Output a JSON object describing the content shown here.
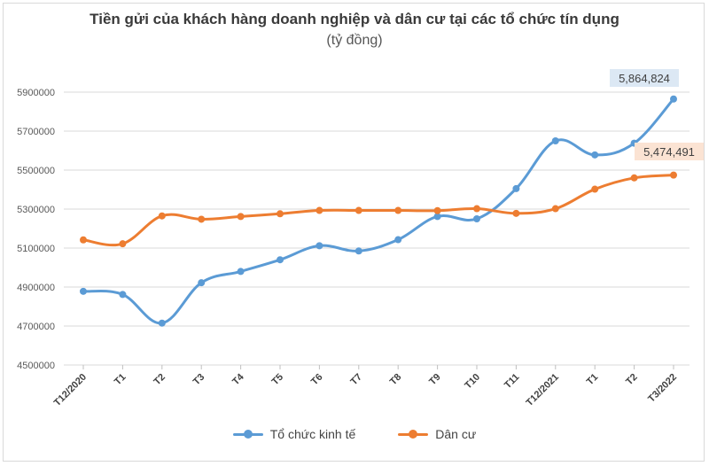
{
  "chart_data": {
    "type": "line",
    "title": "Tiền gửi của khách hàng doanh nghiệp và dân cư tại các tổ chức tín dụng",
    "subtitle": "(tỷ đồng)",
    "categories": [
      "T12/2020",
      "T1",
      "T2",
      "T3",
      "T4",
      "T5",
      "T6",
      "T7",
      "T8",
      "T9",
      "T10",
      "T11",
      "T12/2021",
      "T1",
      "T2",
      "T3/2022"
    ],
    "yticks": [
      "4500000",
      "4700000",
      "4900000",
      "5100000",
      "5300000",
      "5500000",
      "5700000",
      "5900000"
    ],
    "ylim": [
      4500000,
      5900000
    ],
    "grid": true,
    "legend_position": "bottom",
    "series": [
      {
        "name": "Tổ chức kinh tế",
        "color": "#5b9bd5",
        "values": [
          4878000,
          4862000,
          4715000,
          4922000,
          4980000,
          5040000,
          5112000,
          5085000,
          5143000,
          5262000,
          5250000,
          5405000,
          5650000,
          5578000,
          5638000,
          5864824
        ],
        "end_label": "5,864,824",
        "end_label_bg": "#dce8f4"
      },
      {
        "name": "Dân cư",
        "color": "#ed7d31",
        "values": [
          5142000,
          5122000,
          5265000,
          5248000,
          5262000,
          5276000,
          5293000,
          5293000,
          5293000,
          5292000,
          5302000,
          5278000,
          5302000,
          5402000,
          5460000,
          5474491
        ],
        "end_label": "5,474,491",
        "end_label_bg": "#fbe3d3"
      }
    ]
  }
}
